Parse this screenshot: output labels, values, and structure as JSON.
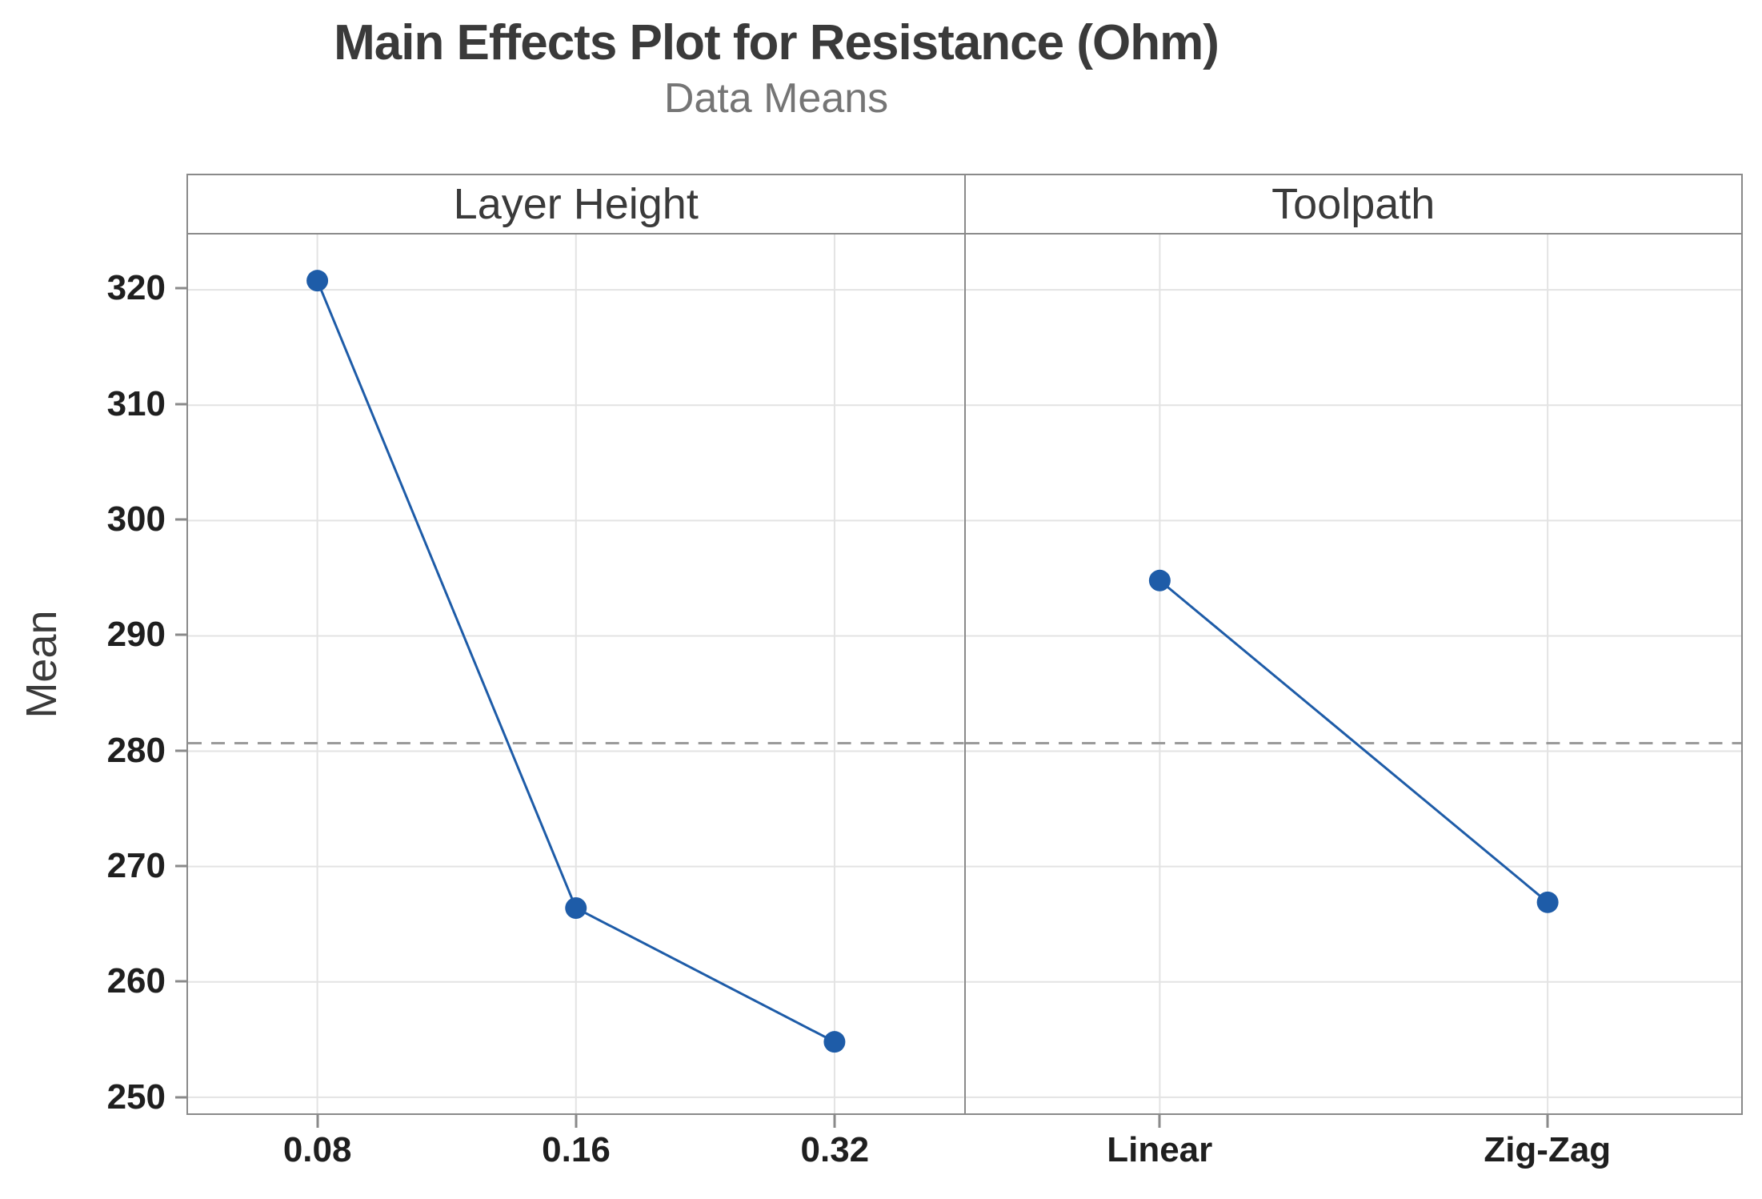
{
  "chart_data": {
    "type": "line",
    "chart_style": "minitab-main-effects-plot",
    "title": "Main Effects Plot for Resistance (Ohm)",
    "subtitle": "Data Means",
    "ylabel": "Mean",
    "ylim": [
      248.6,
      324.8
    ],
    "yticks": [
      250,
      260,
      270,
      280,
      290,
      300,
      310,
      320
    ],
    "grid": true,
    "legend": "none",
    "reference_line": {
      "value": 280.7,
      "style": "dashed"
    },
    "panels": [
      {
        "factor": "Layer Height",
        "categories": [
          "0.08",
          "0.16",
          "0.32"
        ],
        "values": [
          320.8,
          266.4,
          254.8
        ]
      },
      {
        "factor": "Toolpath",
        "categories": [
          "Linear",
          "Zig-Zag"
        ],
        "values": [
          294.8,
          266.9
        ]
      }
    ],
    "colors": {
      "series": "#1e5ca8",
      "gridline": "#e3e3e3",
      "frame": "#8a8a8a",
      "reference_line": "#9a9a9a",
      "title_text": "#3a3a3a",
      "subtitle_text": "#757575",
      "tick_text": "#1f1f1f"
    }
  }
}
